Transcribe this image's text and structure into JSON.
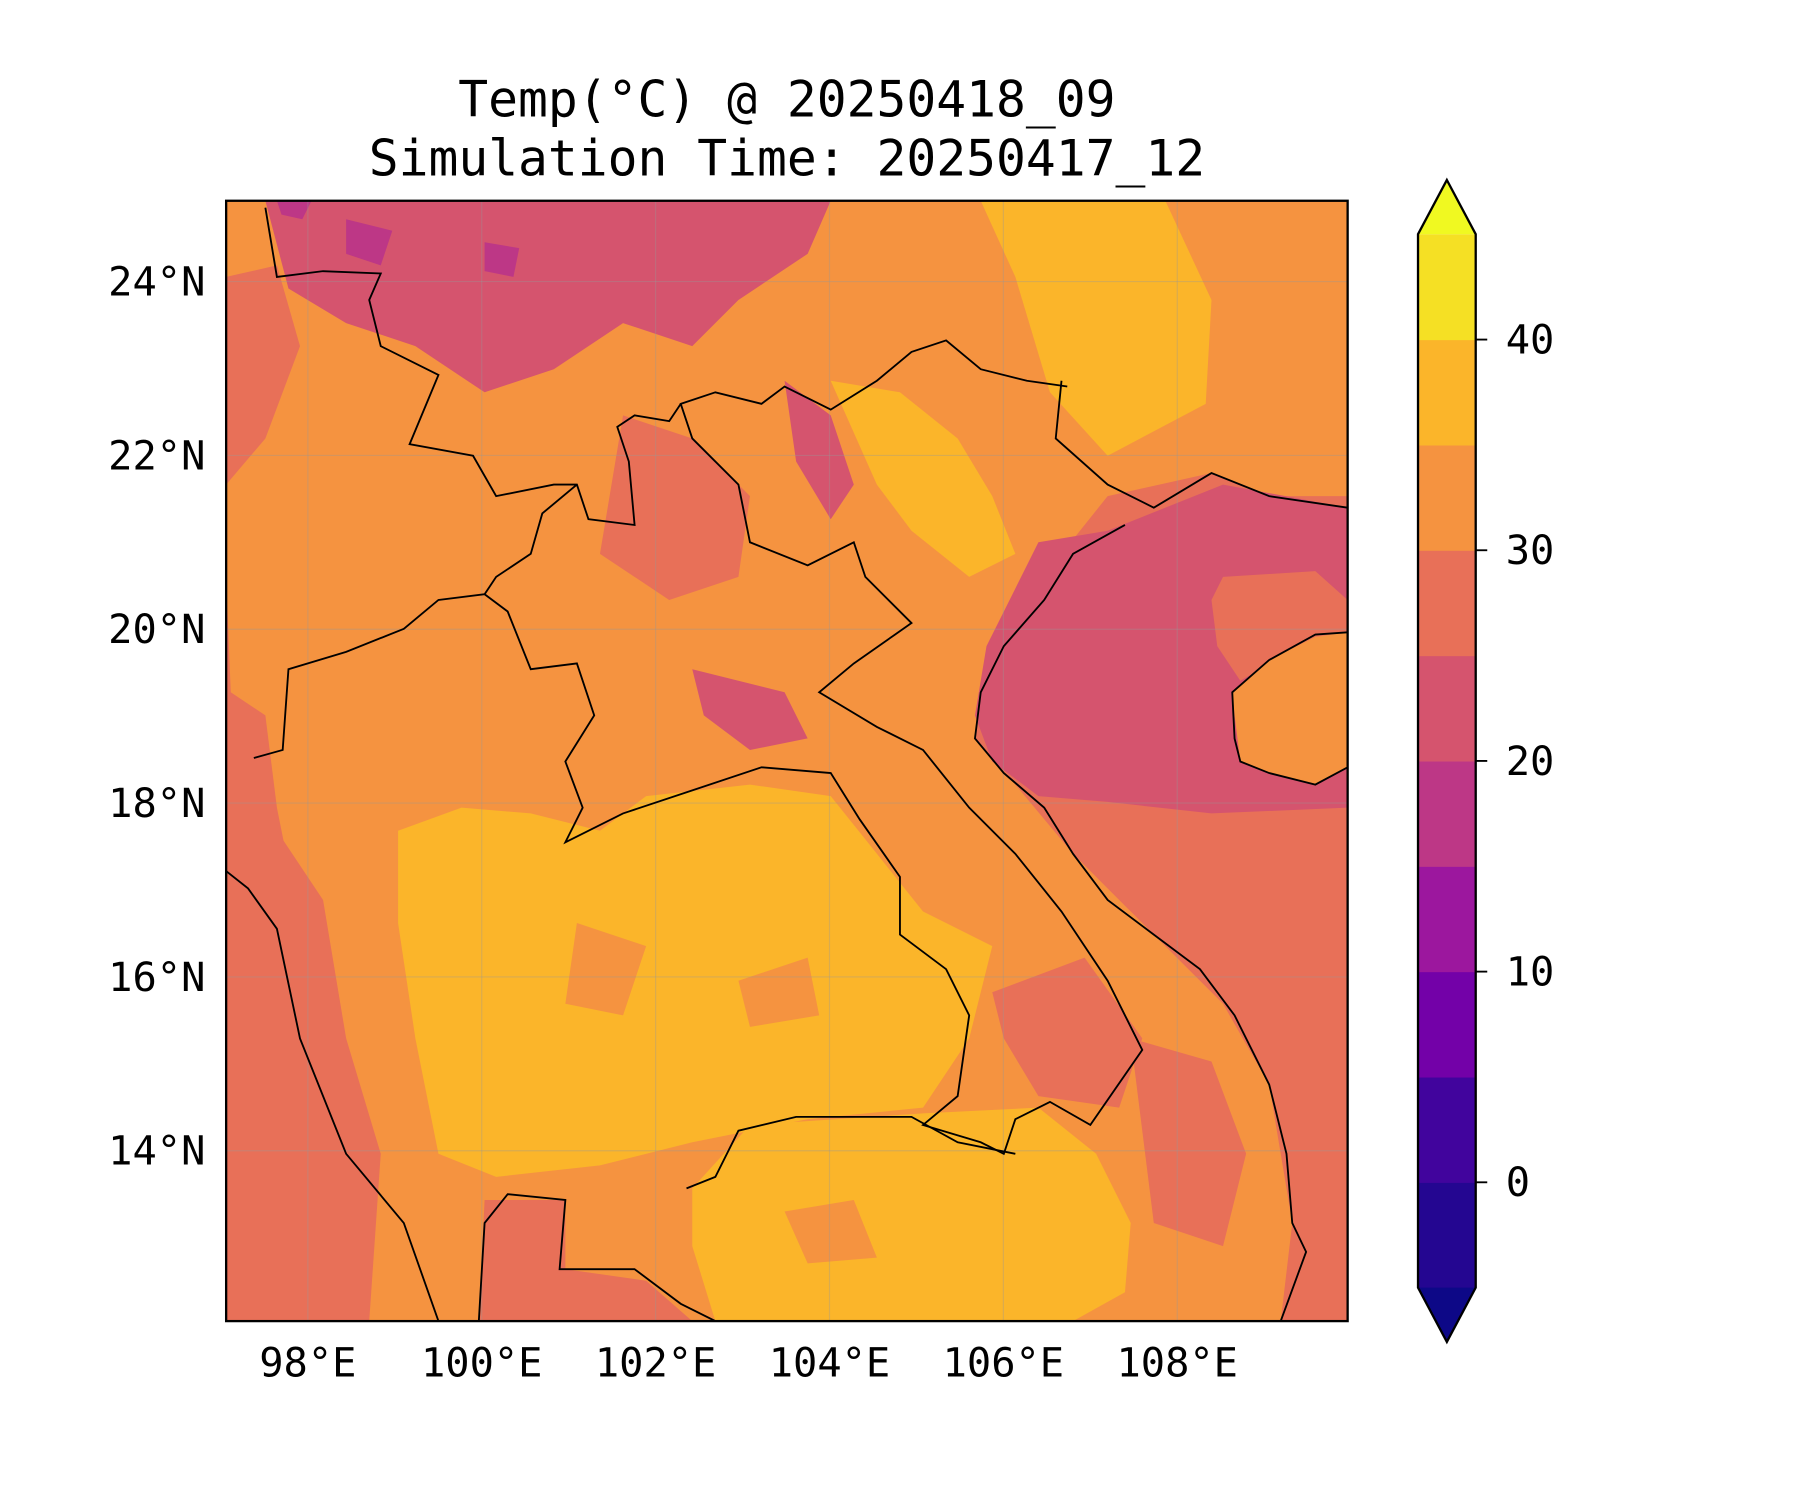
{
  "chart_data": {
    "type": "heatmap",
    "subtype": "filled-contour map",
    "title": "Temp(°C) @ 20250418_09",
    "subtitle": "Simulation Time: 20250417_12",
    "xlabel": "",
    "ylabel": "",
    "lon_range": [
      97.06,
      109.96
    ],
    "lat_range": [
      12.04,
      24.93
    ],
    "x_ticks": [
      98,
      100,
      102,
      104,
      106,
      108
    ],
    "x_tick_labels": [
      "98°E",
      "100°E",
      "102°E",
      "104°E",
      "106°E",
      "108°E"
    ],
    "y_ticks": [
      24,
      22,
      20,
      18,
      16,
      14
    ],
    "y_tick_labels": [
      "24°N",
      "22°N",
      "20°N",
      "18°N",
      "16°N",
      "14°N"
    ],
    "grid": true,
    "colorbar": {
      "levels": [
        -5,
        0,
        5,
        10,
        15,
        20,
        25,
        30,
        35,
        40,
        45
      ],
      "tick_values": [
        0,
        10,
        20,
        30,
        40
      ],
      "tick_labels": [
        "0",
        "10",
        "20",
        "30",
        "40"
      ],
      "extend": "both",
      "colors": [
        "#240691",
        "#41049d",
        "#7301a8",
        "#9c179e",
        "#bd3786",
        "#d5546e",
        "#e87058",
        "#f59340",
        "#fbb52a",
        "#f5e024"
      ],
      "under_color": "#0d0887",
      "over_color": "#f0f921",
      "placement": "right"
    },
    "field_summary": {
      "central_thailand_cambodia": "35-40",
      "northern_highlands": "20-35",
      "gulf_of_tonkin": "20-25",
      "open_sea": "25-30"
    }
  }
}
